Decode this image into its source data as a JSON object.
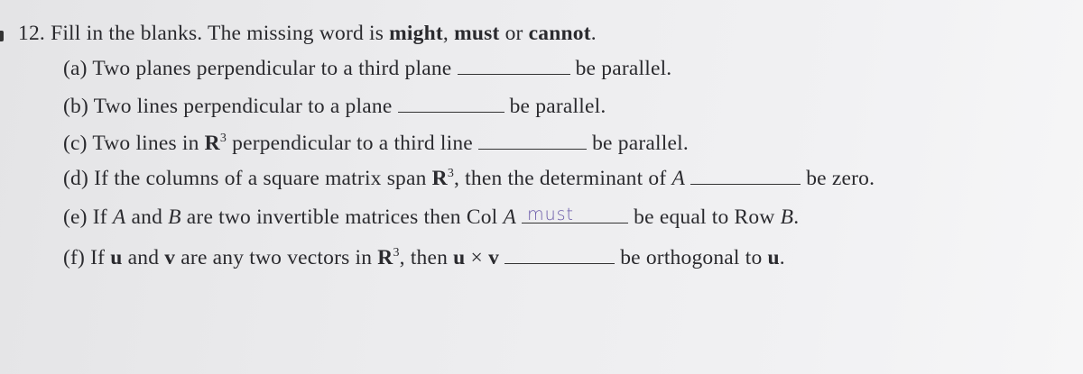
{
  "question": {
    "number": "12.",
    "instruction": [
      "Fill in the blanks. The missing word is",
      "might",
      ",",
      "must",
      "or",
      "cannot",
      "."
    ]
  },
  "items": [
    {
      "label": "(a)",
      "parts": [
        "Two planes perpendicular to a third plane",
        "be parallel."
      ]
    },
    {
      "label": "(b)",
      "parts": [
        "Two lines perpendicular to a plane",
        "be parallel."
      ]
    },
    {
      "label": "(c)",
      "parts": [
        "Two lines in",
        "R",
        "3",
        "perpendicular to a third line",
        "be parallel."
      ]
    },
    {
      "label": "(d)",
      "parts": [
        "If the columns of a square matrix span",
        "R",
        "3",
        ", then the determinant of",
        "A",
        "be zero."
      ]
    },
    {
      "label": "(e)",
      "parts": [
        "If",
        "A",
        "and",
        "B",
        "are two invertible matrices then Col",
        "A",
        "be equal to Row",
        "B",
        "."
      ],
      "answer": "must"
    },
    {
      "label": "(f)",
      "parts": [
        "If",
        "u",
        "and",
        "v",
        "are any two vectors in",
        "R",
        "3",
        ", then",
        "u",
        "×",
        "v",
        "be orthogonal to",
        "u",
        "."
      ]
    }
  ]
}
